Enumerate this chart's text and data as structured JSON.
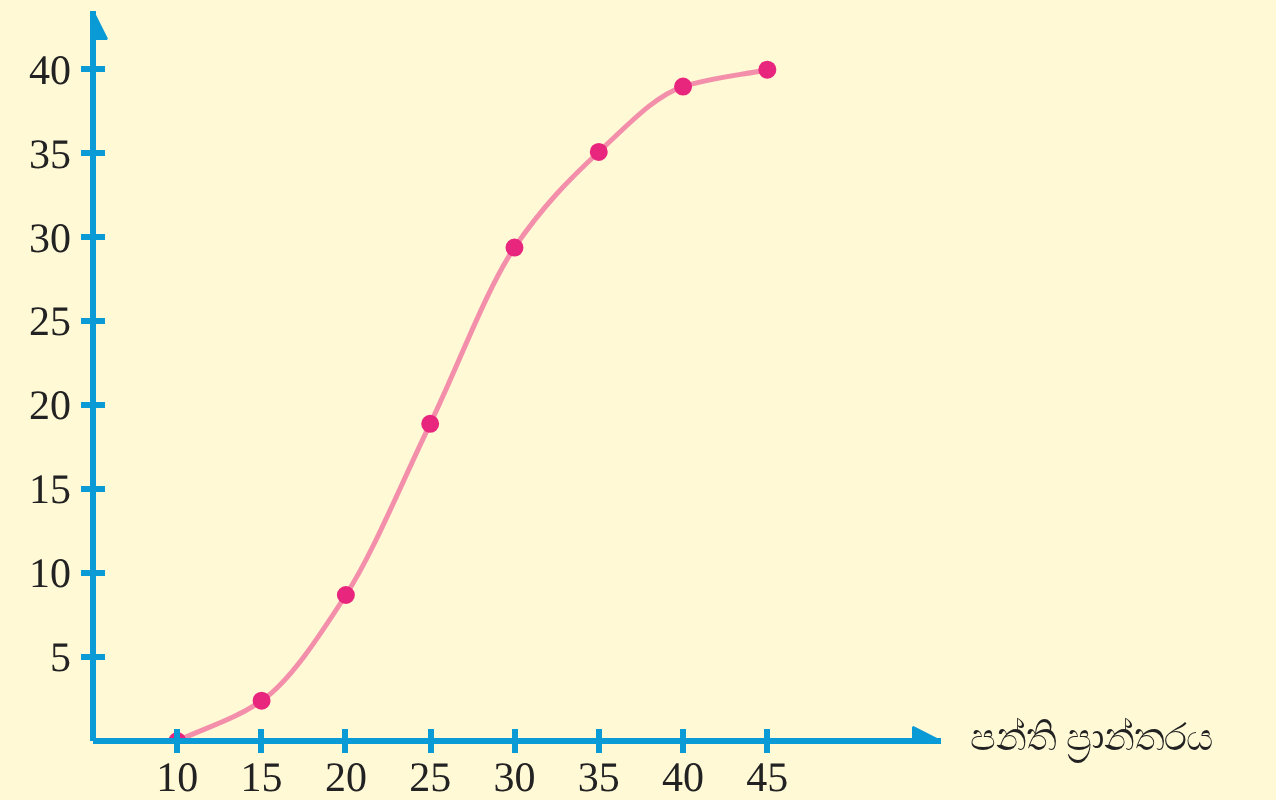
{
  "chart_data": {
    "type": "line",
    "xlabel": "පන්ති ප්‍රාන්තරය",
    "x": [
      10,
      15,
      20,
      25,
      30,
      35,
      40,
      45
    ],
    "series": [
      {
        "color": "#e8267e",
        "values": [
          0,
          2.4,
          8.7,
          18.9,
          29.4,
          35.1,
          39,
          40
        ]
      }
    ],
    "xlim": [
      5,
      55.3
    ],
    "ylim": [
      0,
      43.5
    ],
    "xticks": [
      10,
      15,
      20,
      25,
      30,
      35,
      40,
      45
    ],
    "yticks": [
      5,
      10,
      15,
      20,
      25,
      30,
      35,
      40
    ],
    "marker": "circle",
    "line_style": "solid",
    "grid": false
  }
}
